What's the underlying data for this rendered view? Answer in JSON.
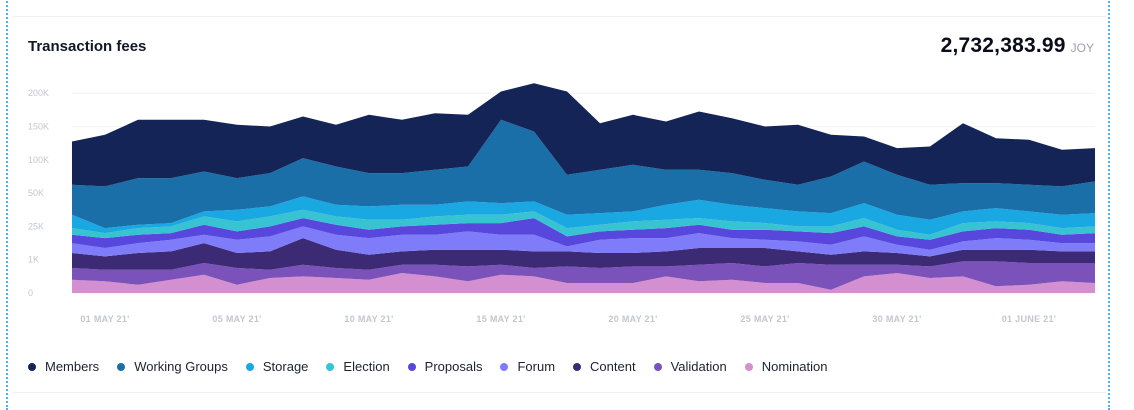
{
  "header": {
    "title": "Transaction fees",
    "total_value": "2,732,383.99",
    "total_unit": "JOY"
  },
  "chart_data": {
    "type": "area",
    "stacked": true,
    "title": "Transaction fees",
    "y_ticks": [
      "0",
      "1K",
      "25K",
      "50K",
      "100K",
      "150K",
      "200K"
    ],
    "x_tick_labels": [
      "01 MAY 21'",
      "05 MAY 21'",
      "10 MAY 21'",
      "15 MAY 21'",
      "20 MAY 21'",
      "25 MAY 21'",
      "30 MAY 21'",
      "01 JUNE 21'"
    ],
    "x_tick_index": [
      1,
      5,
      9,
      13,
      17,
      21,
      25,
      29
    ],
    "grid": true,
    "legend_position": "bottom",
    "series": [
      {
        "name": "Nomination",
        "color": "#d38fd0",
        "values": [
          0.4,
          0.35,
          0.25,
          0.4,
          0.55,
          0.25,
          0.45,
          0.5,
          0.45,
          0.4,
          0.6,
          0.5,
          0.35,
          0.55,
          0.5,
          0.3,
          0.3,
          0.3,
          0.5,
          0.35,
          0.4,
          0.3,
          0.3,
          0.1,
          0.5,
          0.6,
          0.45,
          0.5,
          0.2,
          0.25,
          0.35,
          0.3
        ]
      },
      {
        "name": "Validation",
        "color": "#7b52b9",
        "values": [
          0.35,
          0.35,
          0.45,
          0.3,
          0.35,
          0.5,
          0.25,
          0.35,
          0.3,
          0.3,
          0.25,
          0.35,
          0.45,
          0.3,
          0.25,
          0.5,
          0.45,
          0.5,
          0.3,
          0.5,
          0.5,
          0.5,
          0.6,
          0.75,
          0.35,
          0.25,
          0.35,
          0.45,
          0.75,
          0.65,
          0.55,
          0.6
        ]
      },
      {
        "name": "Content",
        "color": "#3d2a74",
        "values": [
          0.45,
          0.4,
          0.5,
          0.55,
          0.6,
          0.45,
          0.55,
          0.8,
          0.55,
          0.45,
          0.4,
          0.45,
          0.5,
          0.45,
          0.5,
          0.45,
          0.45,
          0.4,
          0.45,
          0.5,
          0.45,
          0.55,
          0.35,
          0.3,
          0.4,
          0.35,
          0.3,
          0.35,
          0.35,
          0.4,
          0.35,
          0.35
        ]
      },
      {
        "name": "Forum",
        "color": "#7e7cf8",
        "values": [
          0.3,
          0.25,
          0.3,
          0.35,
          0.25,
          0.4,
          0.45,
          0.35,
          0.45,
          0.5,
          0.5,
          0.45,
          0.55,
          0.45,
          0.5,
          0.15,
          0.4,
          0.45,
          0.4,
          0.45,
          0.3,
          0.25,
          0.3,
          0.3,
          0.45,
          0.25,
          0.2,
          0.25,
          0.35,
          0.3,
          0.25,
          0.25
        ]
      },
      {
        "name": "Proposals",
        "color": "#5747dd",
        "values": [
          0.25,
          0.3,
          0.25,
          0.2,
          0.3,
          0.25,
          0.3,
          0.25,
          0.3,
          0.25,
          0.25,
          0.3,
          0.25,
          0.35,
          0.5,
          0.3,
          0.25,
          0.25,
          0.3,
          0.25,
          0.25,
          0.3,
          0.3,
          0.35,
          0.3,
          0.25,
          0.3,
          0.3,
          0.3,
          0.3,
          0.25,
          0.3
        ]
      },
      {
        "name": "Election",
        "color": "#38c3d2",
        "values": [
          0.2,
          0.15,
          0.2,
          0.2,
          0.25,
          0.3,
          0.3,
          0.25,
          0.25,
          0.3,
          0.2,
          0.25,
          0.25,
          0.25,
          0.2,
          0.25,
          0.2,
          0.25,
          0.25,
          0.2,
          0.25,
          0.2,
          0.15,
          0.2,
          0.25,
          0.2,
          0.15,
          0.25,
          0.2,
          0.2,
          0.2,
          0.2
        ]
      },
      {
        "name": "Storage",
        "color": "#1aa8e3",
        "values": [
          0.4,
          0.15,
          0.1,
          0.1,
          0.15,
          0.35,
          0.3,
          0.4,
          0.35,
          0.4,
          0.45,
          0.35,
          0.4,
          0.35,
          0.3,
          0.4,
          0.35,
          0.3,
          0.45,
          0.55,
          0.5,
          0.45,
          0.45,
          0.4,
          0.45,
          0.45,
          0.45,
          0.35,
          0.4,
          0.35,
          0.4,
          0.4
        ]
      },
      {
        "name": "Working Groups",
        "color": "#1a6fa8",
        "values": [
          0.9,
          1.25,
          1.4,
          1.35,
          1.2,
          0.95,
          1.0,
          1.15,
          1.15,
          1.0,
          0.95,
          1.05,
          1.05,
          2.5,
          2.1,
          1.2,
          1.3,
          1.4,
          1.05,
          0.9,
          0.95,
          0.85,
          0.8,
          1.1,
          1.25,
          1.2,
          1.05,
          0.85,
          0.75,
          0.8,
          0.85,
          0.95
        ]
      },
      {
        "name": "Members",
        "color": "#142457",
        "values": [
          1.3,
          1.55,
          1.75,
          1.75,
          1.55,
          1.6,
          1.4,
          1.25,
          1.25,
          1.75,
          1.6,
          1.7,
          1.55,
          0.85,
          1.45,
          2.5,
          1.4,
          1.5,
          1.45,
          1.75,
          1.65,
          1.6,
          1.8,
          1.25,
          0.75,
          0.8,
          1.15,
          1.8,
          1.35,
          1.35,
          1.1,
          1.0
        ]
      }
    ]
  },
  "legend": {
    "items": [
      {
        "label": "Members",
        "color": "#142457"
      },
      {
        "label": "Working Groups",
        "color": "#1a6fa8"
      },
      {
        "label": "Storage",
        "color": "#1aa8e3"
      },
      {
        "label": "Election",
        "color": "#38c3d2"
      },
      {
        "label": "Proposals",
        "color": "#5747dd"
      },
      {
        "label": "Forum",
        "color": "#7e7cf8"
      },
      {
        "label": "Content",
        "color": "#3d2a74"
      },
      {
        "label": "Validation",
        "color": "#7b52b9"
      },
      {
        "label": "Nomination",
        "color": "#d38fd0"
      }
    ]
  }
}
